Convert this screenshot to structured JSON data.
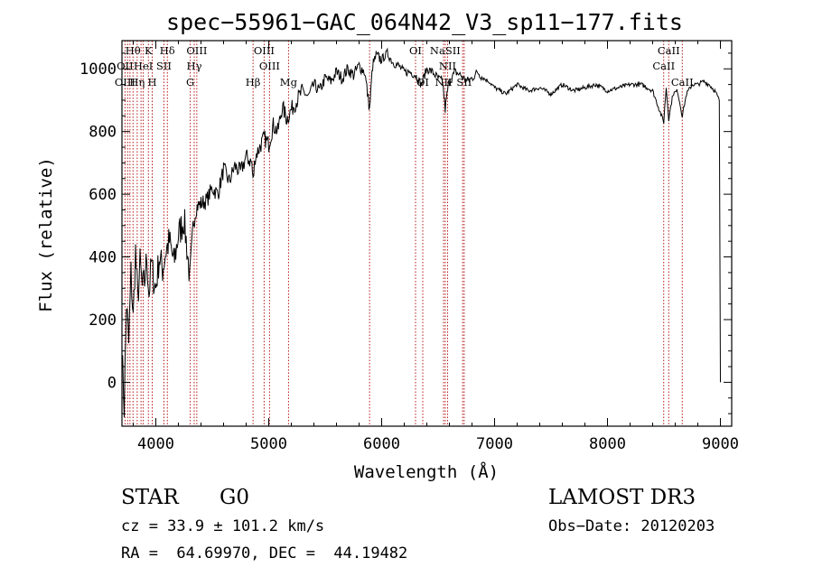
{
  "chart_data": {
    "type": "line",
    "title": "spec−55961−GAC_064N42_V3_sp11−177.fits",
    "xlabel": "Wavelength (Å)",
    "ylabel": "Flux (relative)",
    "xlim": [
      3700,
      9100
    ],
    "ylim": [
      -140,
      1090
    ],
    "xticks": [
      4000,
      5000,
      6000,
      7000,
      8000,
      9000
    ],
    "yticks": [
      0,
      200,
      400,
      600,
      800,
      1000
    ],
    "series": [
      {
        "name": "flux",
        "color": "#000000",
        "x": [
          3700,
          3720,
          3740,
          3760,
          3780,
          3800,
          3820,
          3840,
          3860,
          3880,
          3900,
          3920,
          3940,
          3960,
          3980,
          4000,
          4030,
          4060,
          4090,
          4120,
          4160,
          4200,
          4250,
          4300,
          4330,
          4360,
          4400,
          4450,
          4500,
          4550,
          4600,
          4650,
          4700,
          4750,
          4800,
          4850,
          4861,
          4880,
          4920,
          4960,
          5000,
          5040,
          5080,
          5120,
          5160,
          5200,
          5250,
          5300,
          5350,
          5400,
          5450,
          5500,
          5550,
          5600,
          5650,
          5700,
          5750,
          5800,
          5850,
          5893,
          5920,
          5950,
          6000,
          6050,
          6100,
          6150,
          6200,
          6250,
          6300,
          6350,
          6400,
          6450,
          6500,
          6540,
          6563,
          6590,
          6620,
          6650,
          6700,
          6750,
          6800,
          6850,
          6900,
          6950,
          7000,
          7100,
          7200,
          7300,
          7400,
          7500,
          7600,
          7700,
          7800,
          7900,
          8000,
          8100,
          8200,
          8300,
          8400,
          8498,
          8520,
          8542,
          8580,
          8620,
          8662,
          8700,
          8750,
          8800,
          8850,
          8900,
          8950,
          8990,
          9000
        ],
        "y": [
          100,
          -80,
          250,
          120,
          350,
          200,
          420,
          260,
          380,
          300,
          320,
          400,
          280,
          380,
          330,
          300,
          400,
          360,
          420,
          450,
          380,
          470,
          520,
          340,
          500,
          560,
          570,
          580,
          620,
          600,
          680,
          640,
          690,
          670,
          720,
          700,
          640,
          720,
          750,
          780,
          760,
          820,
          800,
          880,
          840,
          870,
          900,
          930,
          910,
          950,
          930,
          970,
          960,
          990,
          970,
          1000,
          980,
          1010,
          990,
          870,
          1010,
          1040,
          1030,
          1050,
          1020,
          1010,
          990,
          990,
          980,
          950,
          1000,
          990,
          970,
          960,
          870,
          950,
          970,
          990,
          980,
          960,
          970,
          990,
          970,
          960,
          940,
          920,
          950,
          930,
          940,
          920,
          950,
          930,
          940,
          950,
          930,
          940,
          950,
          950,
          930,
          830,
          940,
          840,
          920,
          930,
          850,
          920,
          950,
          950,
          960,
          950,
          930,
          900,
          0
        ]
      }
    ],
    "spectral_lines": [
      {
        "label": "Hθ",
        "wavelength": 3798,
        "row": 1
      },
      {
        "label": "K",
        "wavelength": 3934,
        "row": 1
      },
      {
        "label": "Hδ",
        "wavelength": 4102,
        "row": 1
      },
      {
        "label": "OIII",
        "wavelength": 4363,
        "row": 1
      },
      {
        "label": "OIII",
        "wavelength": 4959,
        "row": 1
      },
      {
        "label": "OI",
        "wavelength": 6300,
        "row": 1
      },
      {
        "label": "NaSII",
        "wavelength": 6563,
        "row": 1
      },
      {
        "label": "CaII",
        "wavelength": 8542,
        "row": 1
      },
      {
        "label": "OII",
        "wavelength": 3727,
        "row": 2
      },
      {
        "label": "HeI",
        "wavelength": 3889,
        "row": 2
      },
      {
        "label": "SII",
        "wavelength": 4072,
        "row": 2
      },
      {
        "label": "Hγ",
        "wavelength": 4340,
        "row": 2
      },
      {
        "label": "OIII",
        "wavelength": 5007,
        "row": 2
      },
      {
        "label": "NII",
        "wavelength": 6584,
        "row": 2
      },
      {
        "label": "CaII",
        "wavelength": 8498,
        "row": 2
      },
      {
        "label": "OIII",
        "wavelength": 3727,
        "row": 3
      },
      {
        "label": "Hη",
        "wavelength": 3835,
        "row": 3
      },
      {
        "label": "H",
        "wavelength": 3968,
        "row": 3
      },
      {
        "label": "G",
        "wavelength": 4305,
        "row": 3
      },
      {
        "label": "Hβ",
        "wavelength": 4861,
        "row": 3
      },
      {
        "label": "Mg",
        "wavelength": 5175,
        "row": 3
      },
      {
        "label": "OI",
        "wavelength": 6364,
        "row": 3
      },
      {
        "label": "NII",
        "wavelength": 6548,
        "row": 3
      },
      {
        "label": "SII",
        "wavelength": 6731,
        "row": 3
      },
      {
        "label": "CaII",
        "wavelength": 8662,
        "row": 3
      }
    ],
    "extra_line_markers": [
      3750,
      3771,
      3869,
      5893,
      6717
    ]
  },
  "info": {
    "object_class": "STAR",
    "subclass": "G0",
    "survey": "LAMOST DR3",
    "cz": "cz = 33.9 ± 101.2 km/s",
    "obs_date": "Obs−Date: 20120203",
    "radec": "RA =  64.69970, DEC =  44.19482"
  }
}
